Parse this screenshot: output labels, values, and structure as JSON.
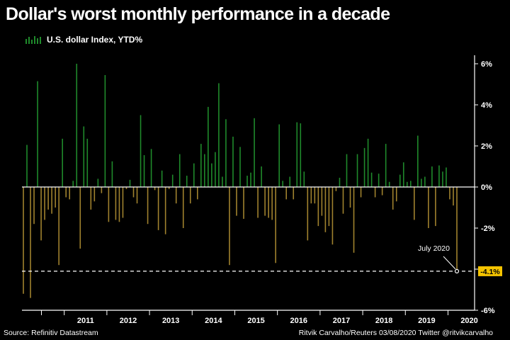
{
  "chart_data": {
    "type": "bar",
    "title": "Dollar's worst monthly performance in a decade",
    "legend": "U.S. dollar Index, YTD%",
    "series_name": "U.S. dollar Index, YTD%",
    "ylim": [
      -6,
      6
    ],
    "yticks": [
      "6%",
      "4%",
      "2%",
      "0%",
      "-2%",
      "-4%",
      "-6%"
    ],
    "ytick_values": [
      6,
      4,
      2,
      0,
      -2,
      -4,
      -6
    ],
    "x_start": "2010-01",
    "year_labels": [
      "2011",
      "2012",
      "2013",
      "2014",
      "2015",
      "2016",
      "2017",
      "2018",
      "2019",
      "2020"
    ],
    "values": [
      -5.2,
      2.05,
      -5.4,
      -1.8,
      5.15,
      -2.6,
      -1.6,
      -1.1,
      -1.3,
      -1.0,
      -3.8,
      2.35,
      -0.5,
      -0.6,
      0.3,
      6.0,
      -3.0,
      2.95,
      2.35,
      -1.1,
      -0.7,
      0.4,
      -0.3,
      5.45,
      -1.7,
      1.25,
      -1.6,
      -1.7,
      -1.5,
      -0.1,
      0.35,
      -0.5,
      -0.8,
      3.5,
      1.55,
      -1.8,
      1.85,
      -0.15,
      -2.1,
      0.8,
      -2.3,
      -0.1,
      0.6,
      -0.8,
      1.6,
      -2.0,
      0.55,
      -0.8,
      1.15,
      -0.6,
      2.1,
      1.6,
      3.9,
      1.15,
      1.7,
      5.05,
      0.5,
      3.3,
      -3.8,
      2.45,
      -1.4,
      1.95,
      -1.55,
      0.55,
      0.7,
      3.35,
      -1.5,
      1.0,
      -1.4,
      -1.5,
      -1.6,
      -3.7,
      3.05,
      0.3,
      -0.6,
      0.5,
      -0.6,
      3.15,
      3.1,
      0.75,
      -2.6,
      -0.8,
      -0.8,
      -1.9,
      -1.4,
      -2.2,
      -1.9,
      -2.8,
      -0.2,
      0.45,
      -1.3,
      1.6,
      -1.0,
      -3.2,
      1.6,
      -0.5,
      1.9,
      2.35,
      0.7,
      -0.5,
      0.65,
      -0.4,
      2.1,
      0.25,
      -1.1,
      -0.7,
      0.6,
      1.2,
      0.25,
      0.3,
      -1.6,
      2.5,
      0.4,
      0.5,
      -2.0,
      1.0,
      -1.9,
      1.05,
      0.75,
      0.95,
      -0.6,
      -0.9,
      -4.1
    ],
    "reference_line": {
      "value": -4.1,
      "label": "-4.1%"
    },
    "annotation": "July 2020",
    "bar_colors": {
      "positive": "#1f8a2b",
      "negative": "#a0822e"
    },
    "reference_color": "#f5c400",
    "source": "Source: Refinitiv Datastream",
    "credit": "Ritvik Carvalho/Reuters 03/08/2020 Twitter @ritvikcarvalho"
  }
}
